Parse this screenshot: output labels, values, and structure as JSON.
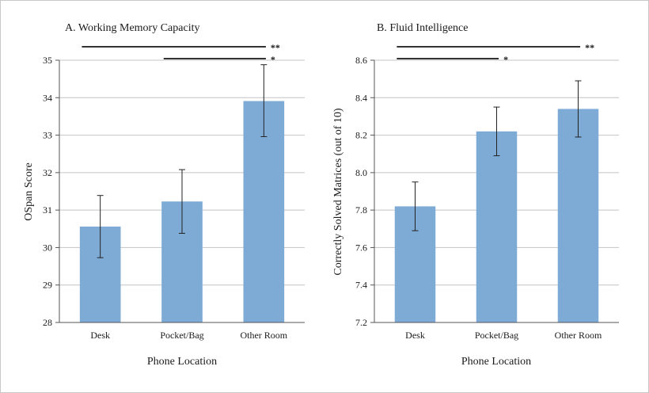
{
  "chart_data": [
    {
      "type": "bar",
      "title": "A. Working Memory Capacity",
      "xlabel": "Phone Location",
      "ylabel": "OSpan Score",
      "categories": [
        "Desk",
        "Pocket/Bag",
        "Other Room"
      ],
      "values": [
        30.56,
        31.23,
        33.91
      ],
      "error_low": [
        29.73,
        30.38,
        32.96
      ],
      "error_high": [
        31.39,
        32.08,
        34.88
      ],
      "ylim": [
        28,
        35
      ],
      "yticks": [
        "28",
        "29",
        "30",
        "31",
        "32",
        "33",
        "34",
        "35"
      ],
      "grid": true,
      "bar_color": "#7eabd6",
      "significance": [
        {
          "from": "Desk",
          "to": "Other Room",
          "label": "**"
        },
        {
          "from": "Pocket/Bag",
          "to": "Other Room",
          "label": "*"
        }
      ]
    },
    {
      "type": "bar",
      "title": "B. Fluid Intelligence",
      "xlabel": "Phone Location",
      "ylabel": "Correctly Solved Matrices (out of 10)",
      "categories": [
        "Desk",
        "Pocket/Bag",
        "Other Room"
      ],
      "values": [
        7.82,
        8.22,
        8.34
      ],
      "error_low": [
        7.69,
        8.09,
        8.19
      ],
      "error_high": [
        7.95,
        8.35,
        8.49
      ],
      "ylim": [
        7.2,
        8.6
      ],
      "yticks": [
        "7.2",
        "7.4",
        "7.6",
        "7.8",
        "8.0",
        "8.2",
        "8.4",
        "8.6"
      ],
      "grid": true,
      "bar_color": "#7eabd6",
      "significance": [
        {
          "from": "Desk",
          "to": "Other Room",
          "label": "**"
        },
        {
          "from": "Desk",
          "to": "Pocket/Bag",
          "label": "*"
        }
      ]
    }
  ]
}
